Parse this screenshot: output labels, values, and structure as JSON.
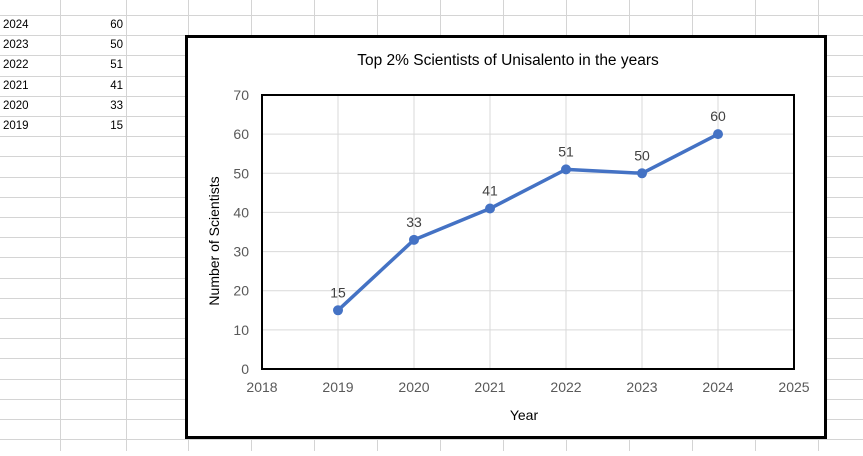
{
  "spreadsheet": {
    "rows": [
      {
        "year": "2024",
        "value": "60"
      },
      {
        "year": "2023",
        "value": "50"
      },
      {
        "year": "2022",
        "value": "51"
      },
      {
        "year": "2021",
        "value": "41"
      },
      {
        "year": "2020",
        "value": "33"
      },
      {
        "year": "2019",
        "value": "15"
      }
    ]
  },
  "colors": {
    "series": "#4472C4",
    "gridline": "#d9d9d9",
    "sheet_gridline": "#d4d4d4",
    "frame": "#000000"
  },
  "chart_data": {
    "type": "line",
    "title": "Top 2% Scientists of Unisalento in the years",
    "xlabel": "Year",
    "ylabel": "Number of Scientists",
    "xlim": [
      2018,
      2025
    ],
    "ylim": [
      0,
      70
    ],
    "x_ticks": [
      2018,
      2019,
      2020,
      2021,
      2022,
      2023,
      2024,
      2025
    ],
    "y_ticks": [
      0,
      10,
      20,
      30,
      40,
      50,
      60,
      70
    ],
    "grid": true,
    "series": [
      {
        "x": [
          2019,
          2020,
          2021,
          2022,
          2023,
          2024
        ],
        "values": [
          15,
          33,
          41,
          51,
          50,
          60
        ],
        "data_labels": [
          "15",
          "33",
          "41",
          "51",
          "50",
          "60"
        ]
      }
    ]
  }
}
